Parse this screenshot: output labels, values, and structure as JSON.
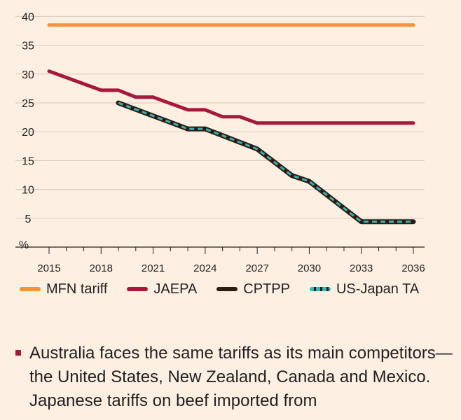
{
  "chart_data": {
    "type": "line",
    "y_unit_label": "%",
    "y_ticks": [
      5,
      10,
      15,
      20,
      25,
      30,
      35,
      40
    ],
    "ylim": [
      0,
      40
    ],
    "x_ticks": [
      2015,
      2018,
      2021,
      2024,
      2027,
      2030,
      2033,
      2036
    ],
    "xlim": [
      2015,
      2036
    ],
    "grid": "horizontal",
    "legend_position": "bottom",
    "series": [
      {
        "name": "MFN tariff",
        "color": "#f7923a",
        "style": "solid",
        "points": [
          [
            2015,
            38.5
          ],
          [
            2036,
            38.5
          ]
        ]
      },
      {
        "name": "JAEPA",
        "color": "#a6193c",
        "style": "solid",
        "points": [
          [
            2015,
            30.5
          ],
          [
            2018,
            27.2
          ],
          [
            2019,
            27.2
          ],
          [
            2020,
            26.0
          ],
          [
            2021,
            26.0
          ],
          [
            2023,
            23.8
          ],
          [
            2024,
            23.8
          ],
          [
            2025,
            22.6
          ],
          [
            2026,
            22.6
          ],
          [
            2027,
            21.5
          ],
          [
            2036,
            21.5
          ]
        ]
      },
      {
        "name": "CPTPP",
        "color": "#2b1d12",
        "style": "solid",
        "points": [
          [
            2019,
            25.0
          ],
          [
            2023,
            20.5
          ],
          [
            2024,
            20.5
          ],
          [
            2027,
            17.0
          ],
          [
            2029,
            12.4
          ],
          [
            2030,
            11.4
          ],
          [
            2033,
            4.4
          ],
          [
            2036,
            4.4
          ]
        ]
      },
      {
        "name": "US-Japan TA",
        "color": "#3bb1b8",
        "style": "dashed",
        "points": [
          [
            2019,
            25.0
          ],
          [
            2023,
            20.5
          ],
          [
            2024,
            20.5
          ],
          [
            2027,
            17.0
          ],
          [
            2029,
            12.4
          ],
          [
            2030,
            11.4
          ],
          [
            2033,
            4.4
          ],
          [
            2036,
            4.4
          ]
        ]
      }
    ]
  },
  "bullet_text": "Australia faces the same tariffs as its main competitors—the United States, New Zealand, Canada and Mexico. Japanese tariffs on beef imported from"
}
